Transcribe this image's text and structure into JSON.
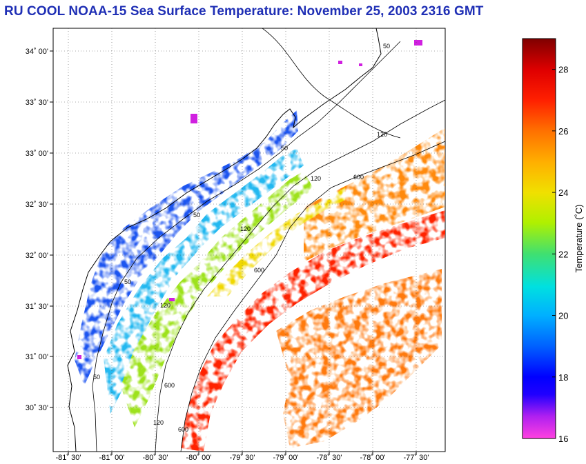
{
  "title": "RU COOL  NOAA-15  Sea Surface Temperature:  November 25, 2003 2316 GMT",
  "map": {
    "lat_ticks": [
      "34˚ 00'",
      "33˚ 30'",
      "33˚ 00'",
      "32˚ 30'",
      "32˚ 00'",
      "31˚ 30'",
      "31˚ 00'",
      "30˚ 30'"
    ],
    "lon_ticks": [
      "-81˚ 30'",
      "-81˚ 00'",
      "-80˚ 30'",
      "-80˚ 00'",
      "-79˚ 30'",
      "-79˚ 00'",
      "-78˚ 30'",
      "-78˚ 00'",
      "-77˚ 30'"
    ],
    "contour_labels": [
      "50",
      "50",
      "50",
      "50",
      "50",
      "120",
      "120",
      "120",
      "120",
      "120",
      "600",
      "600",
      "600",
      "600"
    ]
  },
  "colorbar": {
    "label": "Temperature (˚C)",
    "ticks": [
      "28",
      "26",
      "24",
      "22",
      "20",
      "18",
      "16"
    ],
    "tick_values": [
      28,
      26,
      24,
      22,
      20,
      18,
      16
    ],
    "range": [
      16,
      29
    ],
    "stops": [
      "#ff40e0",
      "#a020f0",
      "#0000ff",
      "#0060ff",
      "#00c8ff",
      "#00e0c0",
      "#60e040",
      "#e0f000",
      "#ffb000",
      "#ff6000",
      "#ff0000",
      "#c00000",
      "#800000"
    ]
  },
  "colors": {
    "title": "#1f2fb5",
    "land": "#ffffff",
    "coast": "#000000"
  }
}
